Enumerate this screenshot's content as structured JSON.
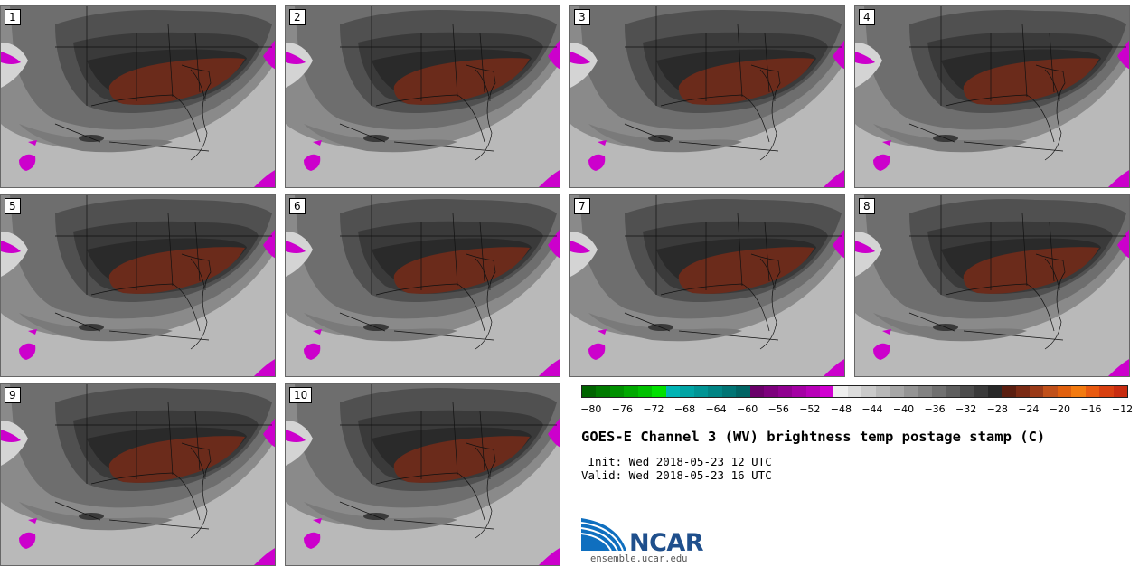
{
  "panels": [
    "1",
    "2",
    "3",
    "4",
    "5",
    "6",
    "7",
    "8",
    "9",
    "10"
  ],
  "colorbar": {
    "colors": [
      "#006400",
      "#007a00",
      "#009000",
      "#00a800",
      "#00c000",
      "#00e000",
      "#00b4b4",
      "#00a4a4",
      "#009494",
      "#008484",
      "#007474",
      "#006464",
      "#6a006a",
      "#7d007d",
      "#900090",
      "#a400a4",
      "#b800b8",
      "#d000d0",
      "#eeeeee",
      "#dcdcdc",
      "#cacaca",
      "#b8b8b8",
      "#a6a6a6",
      "#949494",
      "#828282",
      "#707070",
      "#5e5e5e",
      "#4c4c4c",
      "#3a3a3a",
      "#282828",
      "#5a1e10",
      "#7a2a14",
      "#9a3a18",
      "#c0501a",
      "#e0600e",
      "#f27a10",
      "#e85a10",
      "#d84010",
      "#c82c10"
    ],
    "ticks": [
      "−80",
      "−76",
      "−72",
      "−68",
      "−64",
      "−60",
      "−56",
      "−52",
      "−48",
      "−44",
      "−40",
      "−36",
      "−32",
      "−28",
      "−24",
      "−20",
      "−16",
      "−12"
    ],
    "min": -81.25,
    "max": -11.25
  },
  "title": "GOES-E Channel 3 (WV) brightness temp postage stamp (C)",
  "init_line": " Init: Wed 2018-05-23 12 UTC",
  "valid_line": "Valid: Wed 2018-05-23 16 UTC",
  "logo_text": "NCAR",
  "logo_url": "ensemble.ucar.edu"
}
